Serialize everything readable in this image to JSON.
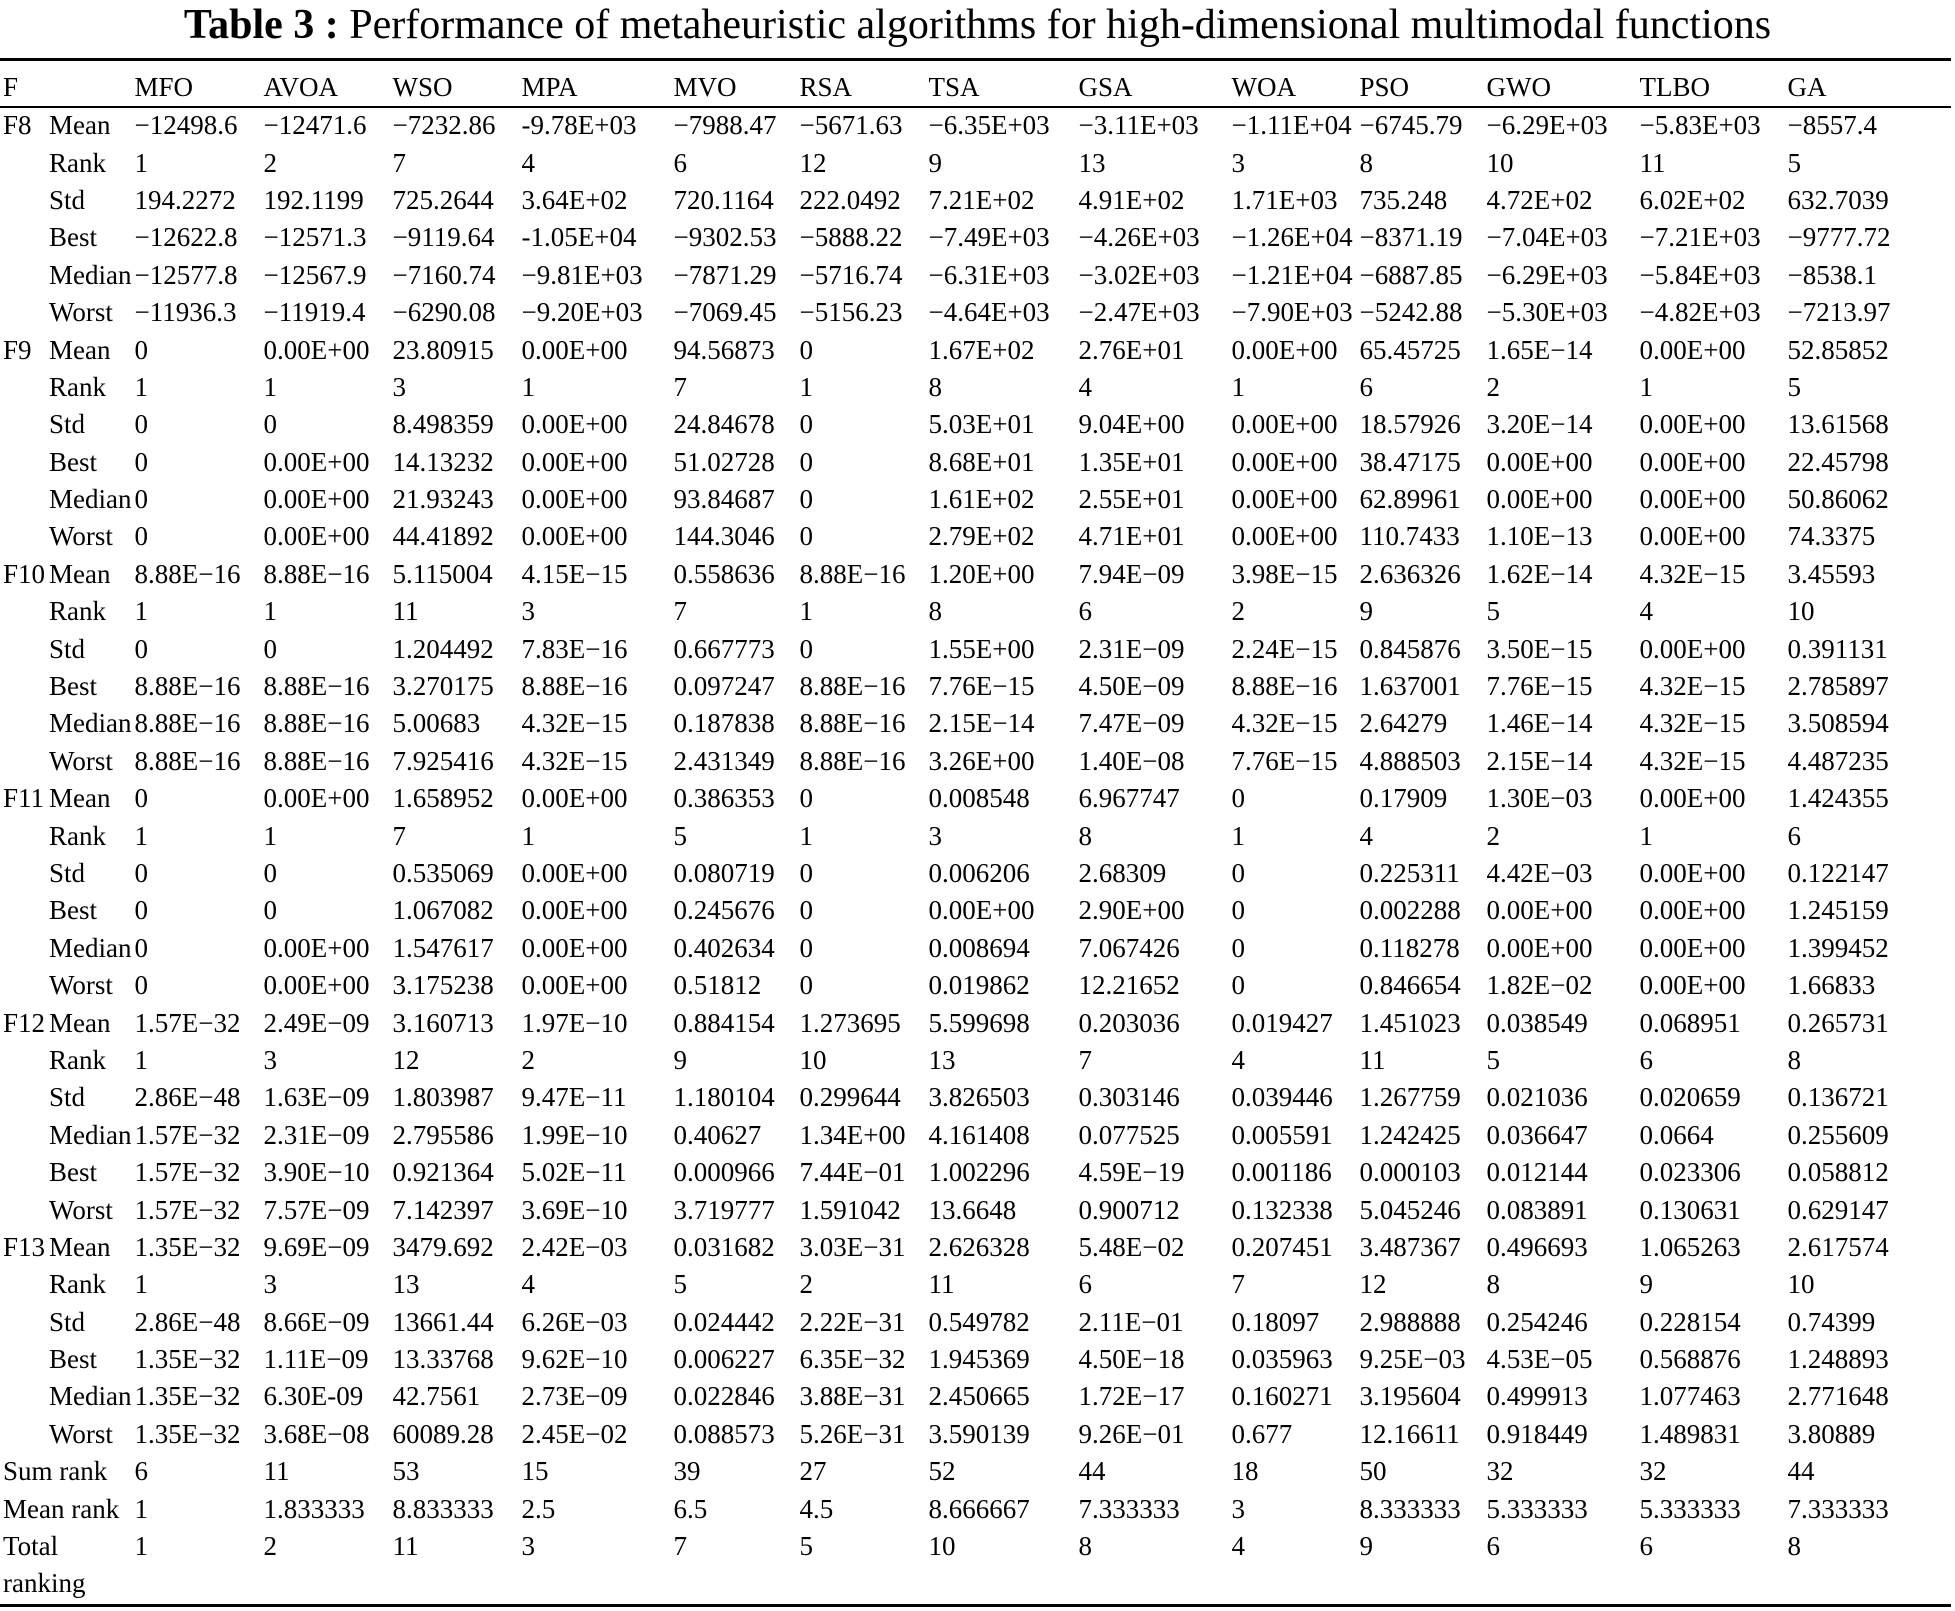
{
  "caption": {
    "label": "Table 3 :",
    "text": "Performance of metaheuristic algorithms for high-dimensional multimodal functions"
  },
  "header": {
    "f": "F",
    "algorithms": [
      "MFO",
      "AVOA",
      "WSO",
      "MPA",
      "MVO",
      "RSA",
      "TSA",
      "GSA",
      "WOA",
      "PSO",
      "GWO",
      "TLBO",
      "GA"
    ]
  },
  "groups": [
    {
      "func": "F8",
      "rows": [
        {
          "stat": "Mean",
          "values": [
            "−12498.6",
            "−12471.6",
            "−7232.86",
            "-9.78E+03",
            "−7988.47",
            "−5671.63",
            "−6.35E+03",
            "−3.11E+03",
            "−1.11E+04",
            "−6745.79",
            "−6.29E+03",
            "−5.83E+03",
            "−8557.4"
          ]
        },
        {
          "stat": "Rank",
          "values": [
            "1",
            "2",
            "7",
            "4",
            "6",
            "12",
            "9",
            "13",
            "3",
            "8",
            "10",
            "11",
            "5"
          ]
        },
        {
          "stat": "Std",
          "values": [
            "194.2272",
            "192.1199",
            "725.2644",
            "3.64E+02",
            "720.1164",
            "222.0492",
            "7.21E+02",
            "4.91E+02",
            "1.71E+03",
            "735.248",
            "4.72E+02",
            "6.02E+02",
            "632.7039"
          ]
        },
        {
          "stat": "Best",
          "values": [
            "−12622.8",
            "−12571.3",
            "−9119.64",
            "-1.05E+04",
            "−9302.53",
            "−5888.22",
            "−7.49E+03",
            "−4.26E+03",
            "−1.26E+04",
            "−8371.19",
            "−7.04E+03",
            "−7.21E+03",
            "−9777.72"
          ]
        },
        {
          "stat": "Median",
          "values": [
            "−12577.8",
            "−12567.9",
            "−7160.74",
            "−9.81E+03",
            "−7871.29",
            "−5716.74",
            "−6.31E+03",
            "−3.02E+03",
            "−1.21E+04",
            "−6887.85",
            "−6.29E+03",
            "−5.84E+03",
            "−8538.1"
          ]
        },
        {
          "stat": "Worst",
          "values": [
            "−11936.3",
            "−11919.4",
            "−6290.08",
            "−9.20E+03",
            "−7069.45",
            "−5156.23",
            "−4.64E+03",
            "−2.47E+03",
            "−7.90E+03",
            "−5242.88",
            "−5.30E+03",
            "−4.82E+03",
            "−7213.97"
          ]
        }
      ]
    },
    {
      "func": "F9",
      "rows": [
        {
          "stat": "Mean",
          "values": [
            "0",
            "0.00E+00",
            "23.80915",
            "0.00E+00",
            "94.56873",
            "0",
            "1.67E+02",
            "2.76E+01",
            "0.00E+00",
            "65.45725",
            "1.65E−14",
            "0.00E+00",
            "52.85852"
          ]
        },
        {
          "stat": "Rank",
          "values": [
            "1",
            "1",
            "3",
            "1",
            "7",
            "1",
            "8",
            "4",
            "1",
            "6",
            "2",
            "1",
            "5"
          ]
        },
        {
          "stat": "Std",
          "values": [
            "0",
            "0",
            "8.498359",
            "0.00E+00",
            "24.84678",
            "0",
            "5.03E+01",
            "9.04E+00",
            "0.00E+00",
            "18.57926",
            "3.20E−14",
            "0.00E+00",
            "13.61568"
          ]
        },
        {
          "stat": "Best",
          "values": [
            "0",
            "0.00E+00",
            "14.13232",
            "0.00E+00",
            "51.02728",
            "0",
            "8.68E+01",
            "1.35E+01",
            "0.00E+00",
            "38.47175",
            "0.00E+00",
            "0.00E+00",
            "22.45798"
          ]
        },
        {
          "stat": "Median",
          "values": [
            "0",
            "0.00E+00",
            "21.93243",
            "0.00E+00",
            "93.84687",
            "0",
            "1.61E+02",
            "2.55E+01",
            "0.00E+00",
            "62.89961",
            "0.00E+00",
            "0.00E+00",
            "50.86062"
          ]
        },
        {
          "stat": "Worst",
          "values": [
            "0",
            "0.00E+00",
            "44.41892",
            "0.00E+00",
            "144.3046",
            "0",
            "2.79E+02",
            "4.71E+01",
            "0.00E+00",
            "110.7433",
            "1.10E−13",
            "0.00E+00",
            "74.3375"
          ]
        }
      ]
    },
    {
      "func": "F10",
      "rows": [
        {
          "stat": "Mean",
          "values": [
            "8.88E−16",
            "8.88E−16",
            "5.115004",
            "4.15E−15",
            "0.558636",
            "8.88E−16",
            "1.20E+00",
            "7.94E−09",
            "3.98E−15",
            "2.636326",
            "1.62E−14",
            "4.32E−15",
            "3.45593"
          ]
        },
        {
          "stat": "Rank",
          "values": [
            "1",
            "1",
            "11",
            "3",
            "7",
            "1",
            "8",
            "6",
            "2",
            "9",
            "5",
            "4",
            "10"
          ]
        },
        {
          "stat": "Std",
          "values": [
            "0",
            "0",
            "1.204492",
            "7.83E−16",
            "0.667773",
            "0",
            "1.55E+00",
            "2.31E−09",
            "2.24E−15",
            "0.845876",
            "3.50E−15",
            "0.00E+00",
            "0.391131"
          ]
        },
        {
          "stat": "Best",
          "values": [
            "8.88E−16",
            "8.88E−16",
            "3.270175",
            "8.88E−16",
            "0.097247",
            "8.88E−16",
            "7.76E−15",
            "4.50E−09",
            "8.88E−16",
            "1.637001",
            "7.76E−15",
            "4.32E−15",
            "2.785897"
          ]
        },
        {
          "stat": "Median",
          "values": [
            "8.88E−16",
            "8.88E−16",
            "5.00683",
            "4.32E−15",
            "0.187838",
            "8.88E−16",
            "2.15E−14",
            "7.47E−09",
            "4.32E−15",
            "2.64279",
            "1.46E−14",
            "4.32E−15",
            "3.508594"
          ]
        },
        {
          "stat": "Worst",
          "values": [
            "8.88E−16",
            "8.88E−16",
            "7.925416",
            "4.32E−15",
            "2.431349",
            "8.88E−16",
            "3.26E+00",
            "1.40E−08",
            "7.76E−15",
            "4.888503",
            "2.15E−14",
            "4.32E−15",
            "4.487235"
          ]
        }
      ]
    },
    {
      "func": "F11",
      "rows": [
        {
          "stat": "Mean",
          "values": [
            "0",
            "0.00E+00",
            "1.658952",
            "0.00E+00",
            "0.386353",
            "0",
            "0.008548",
            "6.967747",
            "0",
            "0.17909",
            "1.30E−03",
            "0.00E+00",
            "1.424355"
          ]
        },
        {
          "stat": "Rank",
          "values": [
            "1",
            "1",
            "7",
            "1",
            "5",
            "1",
            "3",
            "8",
            "1",
            "4",
            "2",
            "1",
            "6"
          ]
        },
        {
          "stat": "Std",
          "values": [
            "0",
            "0",
            "0.535069",
            "0.00E+00",
            "0.080719",
            "0",
            "0.006206",
            "2.68309",
            "0",
            "0.225311",
            "4.42E−03",
            "0.00E+00",
            "0.122147"
          ]
        },
        {
          "stat": "Best",
          "values": [
            "0",
            "0",
            "1.067082",
            "0.00E+00",
            "0.245676",
            "0",
            "0.00E+00",
            "2.90E+00",
            "0",
            "0.002288",
            "0.00E+00",
            "0.00E+00",
            "1.245159"
          ]
        },
        {
          "stat": "Median",
          "values": [
            "0",
            "0.00E+00",
            "1.547617",
            "0.00E+00",
            "0.402634",
            "0",
            "0.008694",
            "7.067426",
            "0",
            "0.118278",
            "0.00E+00",
            "0.00E+00",
            "1.399452"
          ]
        },
        {
          "stat": "Worst",
          "values": [
            "0",
            "0.00E+00",
            "3.175238",
            "0.00E+00",
            "0.51812",
            "0",
            "0.019862",
            "12.21652",
            "0",
            "0.846654",
            "1.82E−02",
            "0.00E+00",
            "1.66833"
          ]
        }
      ]
    },
    {
      "func": "F12",
      "rows": [
        {
          "stat": "Mean",
          "values": [
            "1.57E−32",
            "2.49E−09",
            "3.160713",
            "1.97E−10",
            "0.884154",
            "1.273695",
            "5.599698",
            "0.203036",
            "0.019427",
            "1.451023",
            "0.038549",
            "0.068951",
            "0.265731"
          ]
        },
        {
          "stat": "Rank",
          "values": [
            "1",
            "3",
            "12",
            "2",
            "9",
            "10",
            "13",
            "7",
            "4",
            "11",
            "5",
            "6",
            "8"
          ]
        },
        {
          "stat": "Std",
          "values": [
            "2.86E−48",
            "1.63E−09",
            "1.803987",
            "9.47E−11",
            "1.180104",
            "0.299644",
            "3.826503",
            "0.303146",
            "0.039446",
            "1.267759",
            "0.021036",
            "0.020659",
            "0.136721"
          ]
        },
        {
          "stat": "Median",
          "values": [
            "1.57E−32",
            "2.31E−09",
            "2.795586",
            "1.99E−10",
            "0.40627",
            "1.34E+00",
            "4.161408",
            "0.077525",
            "0.005591",
            "1.242425",
            "0.036647",
            "0.0664",
            "0.255609"
          ]
        },
        {
          "stat": "Best",
          "values": [
            "1.57E−32",
            "3.90E−10",
            "0.921364",
            "5.02E−11",
            "0.000966",
            "7.44E−01",
            "1.002296",
            "4.59E−19",
            "0.001186",
            "0.000103",
            "0.012144",
            "0.023306",
            "0.058812"
          ]
        },
        {
          "stat": "Worst",
          "values": [
            "1.57E−32",
            "7.57E−09",
            "7.142397",
            "3.69E−10",
            "3.719777",
            "1.591042",
            "13.6648",
            "0.900712",
            "0.132338",
            "5.045246",
            "0.083891",
            "0.130631",
            "0.629147"
          ]
        }
      ]
    },
    {
      "func": "F13",
      "rows": [
        {
          "stat": "Mean",
          "values": [
            "1.35E−32",
            "9.69E−09",
            "3479.692",
            "2.42E−03",
            "0.031682",
            "3.03E−31",
            "2.626328",
            "5.48E−02",
            "0.207451",
            "3.487367",
            "0.496693",
            "1.065263",
            "2.617574"
          ]
        },
        {
          "stat": "Rank",
          "values": [
            "1",
            "3",
            "13",
            "4",
            "5",
            "2",
            "11",
            "6",
            "7",
            "12",
            "8",
            "9",
            "10"
          ]
        },
        {
          "stat": "Std",
          "values": [
            "2.86E−48",
            "8.66E−09",
            "13661.44",
            "6.26E−03",
            "0.024442",
            "2.22E−31",
            "0.549782",
            "2.11E−01",
            "0.18097",
            "2.988888",
            "0.254246",
            "0.228154",
            "0.74399"
          ]
        },
        {
          "stat": "Best",
          "values": [
            "1.35E−32",
            "1.11E−09",
            "13.33768",
            "9.62E−10",
            "0.006227",
            "6.35E−32",
            "1.945369",
            "4.50E−18",
            "0.035963",
            "9.25E−03",
            "4.53E−05",
            "0.568876",
            "1.248893"
          ]
        },
        {
          "stat": "Median",
          "values": [
            "1.35E−32",
            "6.30E-09",
            "42.7561",
            "2.73E−09",
            "0.022846",
            "3.88E−31",
            "2.450665",
            "1.72E−17",
            "0.160271",
            "3.195604",
            "0.499913",
            "1.077463",
            "2.771648"
          ]
        },
        {
          "stat": "Worst",
          "values": [
            "1.35E−32",
            "3.68E−08",
            "60089.28",
            "2.45E−02",
            "0.088573",
            "5.26E−31",
            "3.590139",
            "9.26E−01",
            "0.677",
            "12.16611",
            "0.918449",
            "1.489831",
            "3.80889"
          ]
        }
      ]
    }
  ],
  "summary": [
    {
      "label": "Sum rank",
      "values": [
        "6",
        "11",
        "53",
        "15",
        "39",
        "27",
        "52",
        "44",
        "18",
        "50",
        "32",
        "32",
        "44"
      ]
    },
    {
      "label": "Mean rank",
      "values": [
        "1",
        "1.833333",
        "8.833333",
        "2.5",
        "6.5",
        "4.5",
        "8.666667",
        "7.333333",
        "3",
        "8.333333",
        "5.333333",
        "5.333333",
        "7.333333"
      ]
    },
    {
      "label": "Total ranking",
      "values": [
        "1",
        "2",
        "11",
        "3",
        "7",
        "5",
        "10",
        "8",
        "4",
        "9",
        "6",
        "6",
        "8"
      ]
    }
  ]
}
